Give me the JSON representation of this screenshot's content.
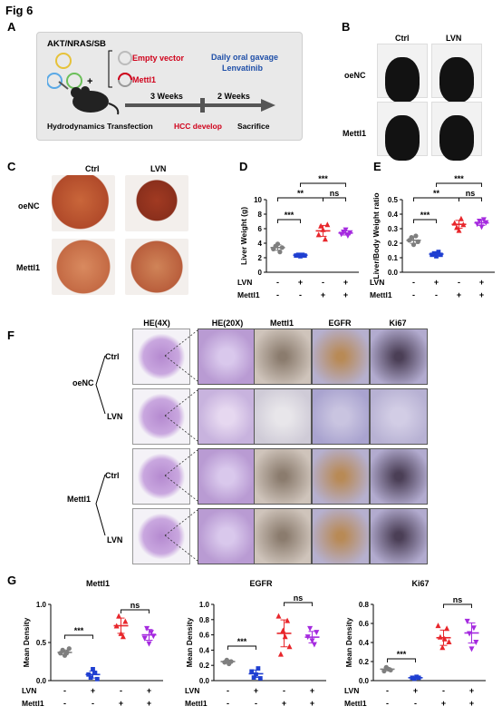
{
  "figure_title": "Fig 6",
  "panel_labels": [
    "A",
    "B",
    "C",
    "D",
    "E",
    "F",
    "G"
  ],
  "panelA": {
    "plasmids": "AKT/NRAS/SB",
    "empty_vector": "Empty vector",
    "mettl1": "Mettl1",
    "plus": "+",
    "gavage": "Daily oral gavage",
    "drug": "Lenvatinib",
    "weeks3": "3 Weeks",
    "weeks2": "2 Weeks",
    "step1": "Hydrodynamics Transfection",
    "step2": "HCC develop",
    "step3": "Sacrifice"
  },
  "panelB": {
    "col1": "Ctrl",
    "col2": "LVN",
    "row1": "oeNC",
    "row2": "Mettl1"
  },
  "panelC": {
    "col1": "Ctrl",
    "col2": "LVN",
    "row1": "oeNC",
    "row2": "Mettl1"
  },
  "panelF": {
    "headers": [
      "HE(4X)",
      "HE(20X)",
      "Mettl1",
      "EGFR",
      "Ki67"
    ],
    "groups": [
      "oeNC",
      "Mettl1"
    ],
    "rows": [
      "Ctrl",
      "LVN",
      "Ctrl",
      "LVN"
    ]
  },
  "row_labels": {
    "lvn": "LVN",
    "mettl1": "Mettl1"
  },
  "signs": {
    "lvn": [
      "-",
      "+",
      "-",
      "+"
    ],
    "mettl1": [
      "-",
      "-",
      "+",
      "+"
    ]
  },
  "colors": {
    "ctrl": "#7f7f7f",
    "lvn": "#1f3fd1",
    "mettl1": "#e8262b",
    "mettl1_lvn": "#a52adf"
  },
  "chart_data": [
    {
      "id": "D",
      "type": "scatter",
      "ylabel": "Liver Weight (g)",
      "ylim": [
        0,
        10
      ],
      "yticks": [
        "0",
        "2",
        "4",
        "6",
        "8",
        "10"
      ],
      "groups": [
        {
          "values": [
            3.2,
            3.6,
            3.9,
            2.8,
            3.4
          ],
          "mean": 3.4
        },
        {
          "values": [
            2.3,
            2.4,
            2.2,
            2.4,
            2.3
          ],
          "mean": 2.35
        },
        {
          "values": [
            5.2,
            6.4,
            5.9,
            4.6,
            6.6
          ],
          "mean": 5.7
        },
        {
          "values": [
            5.2,
            5.5,
            5.8,
            5.0,
            5.4
          ],
          "mean": 5.4
        }
      ],
      "sig": [
        "***",
        "**",
        "ns",
        "***"
      ]
    },
    {
      "id": "E",
      "type": "scatter",
      "ylabel": "Liver/Body Weight ratio",
      "ylim": [
        0.0,
        0.5
      ],
      "yticks": [
        "0.0",
        "0.1",
        "0.2",
        "0.3",
        "0.4",
        "0.5"
      ],
      "groups": [
        {
          "values": [
            0.22,
            0.24,
            0.19,
            0.25,
            0.21
          ],
          "mean": 0.22
        },
        {
          "values": [
            0.12,
            0.13,
            0.11,
            0.14,
            0.12
          ],
          "mean": 0.125
        },
        {
          "values": [
            0.34,
            0.31,
            0.29,
            0.37,
            0.33
          ],
          "mean": 0.33
        },
        {
          "values": [
            0.33,
            0.35,
            0.31,
            0.36,
            0.34
          ],
          "mean": 0.34
        }
      ],
      "sig": [
        "***",
        "**",
        "ns",
        "***"
      ]
    },
    {
      "id": "G1",
      "type": "scatter",
      "title": "Mettl1",
      "ylabel": "Mean Density",
      "ylim": [
        0.0,
        1.0
      ],
      "yticks": [
        "0.0",
        "0.5",
        "1.0"
      ],
      "groups": [
        {
          "values": [
            0.36,
            0.4,
            0.33,
            0.37,
            0.42
          ],
          "mean": 0.37
        },
        {
          "values": [
            0.08,
            0.04,
            0.15,
            0.1,
            0.02
          ],
          "mean": 0.08
        },
        {
          "values": [
            0.72,
            0.85,
            0.62,
            0.58,
            0.78
          ],
          "mean": 0.72
        },
        {
          "values": [
            0.55,
            0.68,
            0.48,
            0.63,
            0.58
          ],
          "mean": 0.6
        }
      ],
      "sig": [
        "***",
        "ns"
      ]
    },
    {
      "id": "G2",
      "type": "scatter",
      "title": "EGFR",
      "ylabel": "Mean Density",
      "ylim": [
        0.0,
        1.0
      ],
      "yticks": [
        "0.0",
        "0.2",
        "0.4",
        "0.6",
        "0.8",
        "1.0"
      ],
      "groups": [
        {
          "values": [
            0.24,
            0.27,
            0.22,
            0.25
          ],
          "mean": 0.25
        },
        {
          "values": [
            0.12,
            0.04,
            0.08,
            0.16,
            0.03
          ],
          "mean": 0.09
        },
        {
          "values": [
            0.85,
            0.35,
            0.66,
            0.58,
            0.79,
            0.45
          ],
          "mean": 0.62
        },
        {
          "values": [
            0.57,
            0.68,
            0.52,
            0.47,
            0.63
          ],
          "mean": 0.57
        }
      ],
      "sig": [
        "***",
        "ns"
      ]
    },
    {
      "id": "G3",
      "type": "scatter",
      "title": "Ki67",
      "ylabel": "Mean Density",
      "ylim": [
        0.0,
        0.8
      ],
      "yticks": [
        "0.0",
        "0.2",
        "0.4",
        "0.6",
        "0.8"
      ],
      "groups": [
        {
          "values": [
            0.1,
            0.14,
            0.12,
            0.11
          ],
          "mean": 0.12
        },
        {
          "values": [
            0.03,
            0.02,
            0.04,
            0.03
          ],
          "mean": 0.03
        },
        {
          "values": [
            0.58,
            0.46,
            0.35,
            0.44,
            0.55,
            0.41
          ],
          "mean": 0.45
        },
        {
          "values": [
            0.62,
            0.49,
            0.33,
            0.55,
            0.4
          ],
          "mean": 0.5
        }
      ],
      "sig": [
        "***",
        "ns"
      ]
    }
  ]
}
